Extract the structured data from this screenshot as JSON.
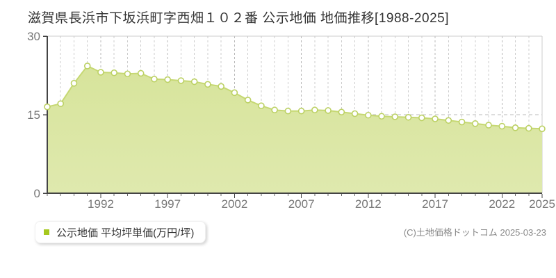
{
  "title": "滋賀県長浜市下坂浜町字西畑１０２番 公示地価 地価推移[1988-2025]",
  "legend": {
    "label": "公示地価 平均坪単価(万円/坪)",
    "marker_color": "#a6c81e"
  },
  "copyright": "(C)土地価格ドットコム 2025-03-23",
  "chart_data": {
    "type": "area",
    "title": "滋賀県長浜市下坂浜町字西畑１０２番 公示地価 地価推移[1988-2025]",
    "series_name": "公示地価 平均坪単価(万円/坪)",
    "unit": "万円/坪",
    "x": [
      1988,
      1989,
      1990,
      1991,
      1992,
      1993,
      1994,
      1995,
      1996,
      1997,
      1998,
      1999,
      2000,
      2001,
      2002,
      2003,
      2004,
      2005,
      2006,
      2007,
      2008,
      2009,
      2010,
      2011,
      2012,
      2013,
      2014,
      2015,
      2016,
      2017,
      2018,
      2019,
      2020,
      2021,
      2022,
      2023,
      2024,
      2025
    ],
    "values": [
      16.5,
      17.1,
      21.0,
      24.3,
      23.1,
      23.0,
      22.8,
      22.9,
      21.8,
      21.7,
      21.5,
      21.3,
      20.8,
      20.4,
      19.2,
      17.8,
      16.7,
      15.9,
      15.7,
      15.7,
      15.9,
      15.8,
      15.5,
      15.2,
      14.9,
      14.7,
      14.6,
      14.5,
      14.4,
      14.2,
      13.9,
      13.6,
      13.3,
      13.0,
      12.8,
      12.5,
      12.4,
      12.3
    ],
    "ylim": [
      0,
      30
    ],
    "yticks": [
      0,
      15,
      30
    ],
    "xticks": [
      1992,
      1997,
      2002,
      2007,
      2012,
      2017,
      2022,
      2025
    ],
    "grid": {
      "vertical": "dashed-every-year",
      "horizontal": "dashed-at-15"
    },
    "legend_position": "bottom-left",
    "colors": {
      "area_fill_top": "#d7e49b",
      "area_fill_bottom": "#dfe9ae",
      "line": "#c6d873",
      "marker_fill": "#ffffff",
      "marker_stroke": "#bcd164",
      "grid": "#cccccc",
      "grid_major": "#b8b8b8",
      "dash_line": "#bbbbbb",
      "axis": "#444444",
      "border": "#cccccc",
      "tick_label": "#777777"
    }
  }
}
